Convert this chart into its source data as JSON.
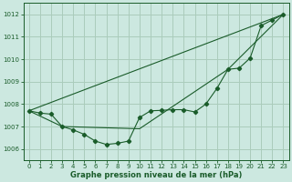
{
  "xlabel": "Graphe pression niveau de la mer (hPa)",
  "bg_color": "#cce8e0",
  "grid_color": "#aaccbb",
  "line_color": "#1a5c2a",
  "xlim": [
    -0.5,
    23.5
  ],
  "ylim": [
    1005.5,
    1012.5
  ],
  "yticks": [
    1006,
    1007,
    1008,
    1009,
    1010,
    1011,
    1012
  ],
  "xticks": [
    0,
    1,
    2,
    3,
    4,
    5,
    6,
    7,
    8,
    9,
    10,
    11,
    12,
    13,
    14,
    15,
    16,
    17,
    18,
    19,
    20,
    21,
    22,
    23
  ],
  "series1_x": [
    0,
    1,
    2,
    3,
    4,
    5,
    6,
    7,
    8,
    9,
    10,
    11,
    12,
    13,
    14,
    15,
    16,
    17,
    18,
    19,
    20,
    21,
    22,
    23
  ],
  "series1_y": [
    1007.7,
    1007.6,
    1007.55,
    1007.0,
    1006.85,
    1006.65,
    1006.35,
    1006.2,
    1006.25,
    1006.35,
    1007.4,
    1007.7,
    1007.72,
    1007.75,
    1007.75,
    1007.65,
    1008.0,
    1008.7,
    1009.55,
    1009.6,
    1010.05,
    1011.5,
    1011.75,
    1012.0
  ],
  "line2_x": [
    0,
    23
  ],
  "line2_y": [
    1007.7,
    1012.0
  ],
  "line3_x": [
    0,
    3,
    10,
    18,
    23
  ],
  "line3_y": [
    1007.7,
    1007.0,
    1006.9,
    1009.55,
    1012.0
  ]
}
